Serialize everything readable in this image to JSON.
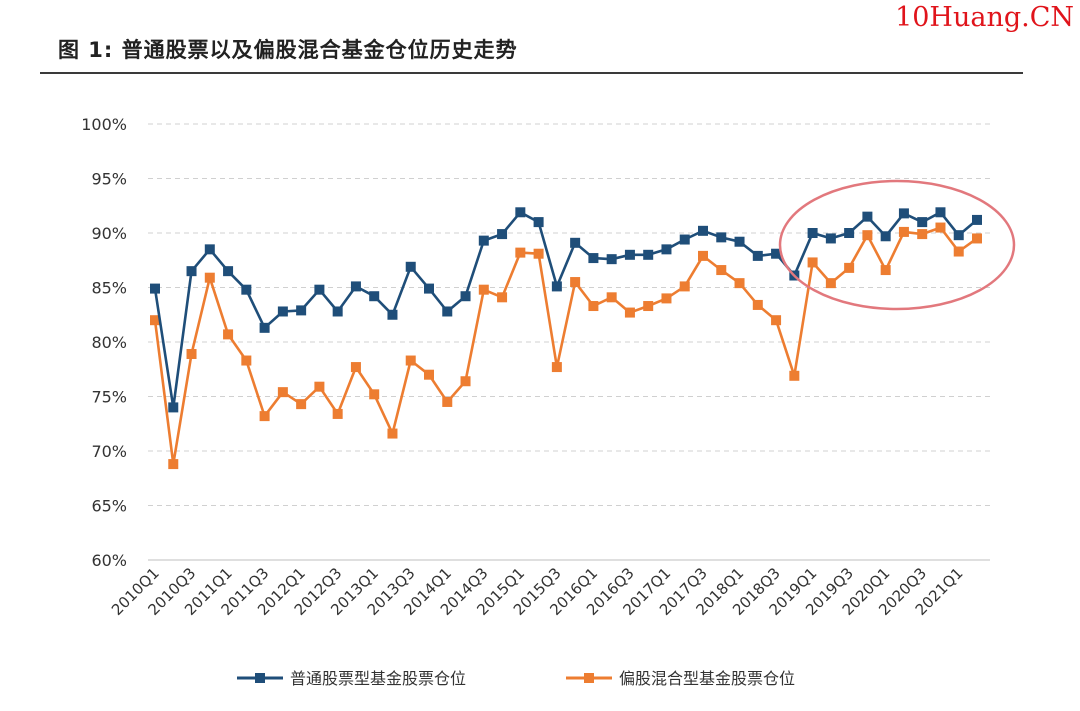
{
  "watermark": "10Huang.CN",
  "figure": {
    "title": "图 1: 普通股票以及偏股混合基金仓位历史走势"
  },
  "chart_data": {
    "type": "line",
    "title": "",
    "xlabel": "",
    "ylabel": "",
    "ylim": [
      60,
      100
    ],
    "y_ticks": [
      "60%",
      "65%",
      "70%",
      "75%",
      "80%",
      "85%",
      "90%",
      "95%",
      "100%"
    ],
    "grid": "horizontal dashed",
    "x": [
      "2010Q1",
      "2010Q2",
      "2010Q3",
      "2010Q4",
      "2011Q1",
      "2011Q2",
      "2011Q3",
      "2011Q4",
      "2012Q1",
      "2012Q2",
      "2012Q3",
      "2012Q4",
      "2013Q1",
      "2013Q2",
      "2013Q3",
      "2013Q4",
      "2014Q1",
      "2014Q2",
      "2014Q3",
      "2014Q4",
      "2015Q1",
      "2015Q2",
      "2015Q3",
      "2015Q4",
      "2016Q1",
      "2016Q2",
      "2016Q3",
      "2016Q4",
      "2017Q1",
      "2017Q2",
      "2017Q3",
      "2017Q4",
      "2018Q1",
      "2018Q2",
      "2018Q3",
      "2018Q4",
      "2019Q1",
      "2019Q2",
      "2019Q3",
      "2019Q4",
      "2020Q1",
      "2020Q2",
      "2020Q3",
      "2020Q4",
      "2021Q1",
      "2021Q2"
    ],
    "x_tick_labels": [
      "2010Q1",
      "2010Q3",
      "2011Q1",
      "2011Q3",
      "2012Q1",
      "2012Q3",
      "2013Q1",
      "2013Q3",
      "2014Q1",
      "2014Q3",
      "2015Q1",
      "2015Q3",
      "2016Q1",
      "2016Q3",
      "2017Q1",
      "2017Q3",
      "2018Q1",
      "2018Q3",
      "2019Q1",
      "2019Q3",
      "2020Q1",
      "2020Q3",
      "2021Q1"
    ],
    "series": [
      {
        "name": "普通股票型基金股票仓位",
        "color": "#1f4e79",
        "values": [
          84.9,
          74.0,
          86.5,
          88.5,
          86.5,
          84.8,
          81.3,
          82.8,
          82.9,
          84.8,
          82.8,
          85.1,
          84.2,
          82.5,
          86.9,
          84.9,
          82.8,
          84.2,
          89.3,
          89.9,
          91.9,
          91.0,
          85.1,
          89.1,
          87.7,
          87.6,
          88.0,
          88.0,
          88.5,
          89.4,
          90.2,
          89.6,
          89.2,
          87.9,
          88.1,
          86.1,
          90.0,
          89.5,
          90.0,
          91.5,
          89.7,
          91.8,
          91.0,
          91.9,
          89.8,
          91.2
        ]
      },
      {
        "name": "偏股混合型基金股票仓位",
        "color": "#ed7d31",
        "values": [
          82.0,
          68.8,
          78.9,
          85.9,
          80.7,
          78.3,
          73.2,
          75.4,
          74.3,
          75.9,
          73.4,
          77.7,
          75.2,
          71.6,
          78.3,
          77.0,
          74.5,
          76.4,
          84.8,
          84.1,
          88.2,
          88.1,
          77.7,
          85.5,
          83.3,
          84.1,
          82.7,
          83.3,
          84.0,
          85.1,
          87.9,
          86.6,
          85.4,
          83.4,
          82.0,
          76.9,
          87.3,
          85.4,
          86.8,
          89.8,
          86.6,
          90.1,
          89.9,
          90.5,
          88.3,
          89.5
        ]
      }
    ],
    "legend_position": "bottom",
    "annotation": "red ellipse highlighting 2019Q1–2021Q2"
  }
}
